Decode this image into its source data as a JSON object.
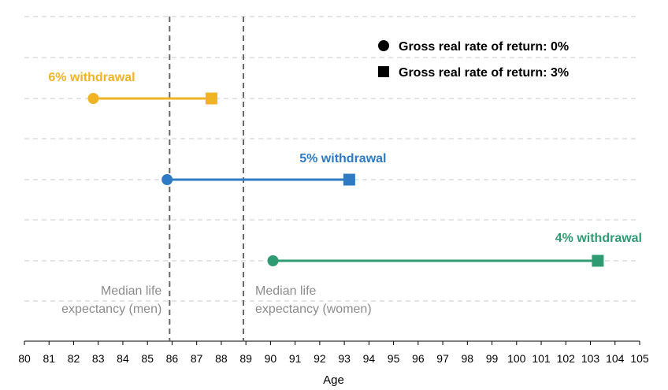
{
  "chart_data": {
    "type": "dumbbell",
    "xlabel": "Age",
    "xlim": [
      80,
      105
    ],
    "x_ticks": [
      80,
      81,
      82,
      83,
      84,
      85,
      86,
      87,
      88,
      89,
      90,
      91,
      92,
      93,
      94,
      95,
      96,
      97,
      98,
      99,
      100,
      101,
      102,
      103,
      104,
      105
    ],
    "grid": "horizontal dashed",
    "legend": {
      "placement": "top-right",
      "entries": [
        {
          "marker": "circle",
          "label": "Gross real rate of return: 0%"
        },
        {
          "marker": "square",
          "label": "Gross real rate of return: 3%"
        }
      ]
    },
    "series": [
      {
        "name": "6% withdrawal",
        "color": "#f0b323",
        "start": 82.8,
        "end": 87.6
      },
      {
        "name": "5% withdrawal",
        "color": "#2e7bc4",
        "start": 85.8,
        "end": 93.2
      },
      {
        "name": "4% withdrawal",
        "color": "#2e9b73",
        "start": 90.1,
        "end": 103.3
      }
    ],
    "reference_lines": [
      {
        "x": 85.9,
        "label_lines": [
          "Median life",
          "expectancy (men)"
        ],
        "align": "right"
      },
      {
        "x": 88.9,
        "label_lines": [
          "Median life",
          "expectancy (women)"
        ],
        "align": "left"
      }
    ]
  }
}
